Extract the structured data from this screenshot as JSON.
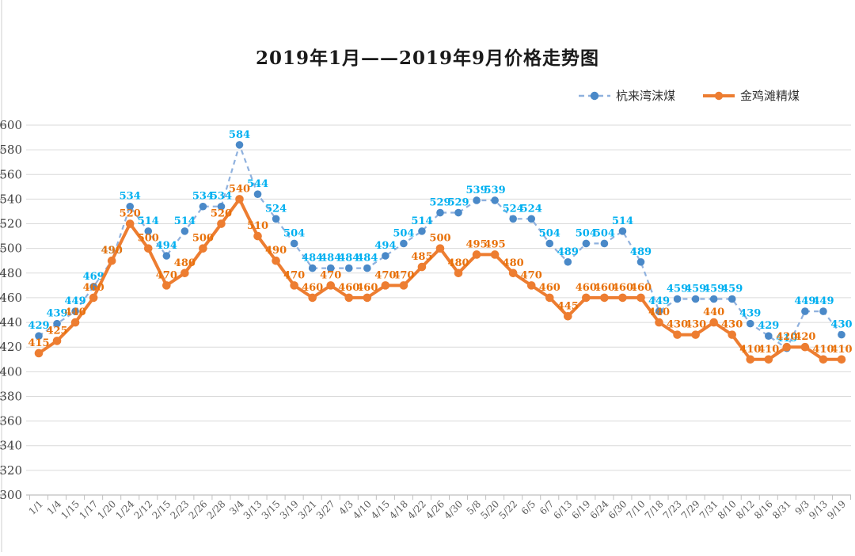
{
  "title": "2019年1月——2019年9月价格走势图",
  "chart_data": {
    "type": "line",
    "categories": [
      "1/1",
      "1/4",
      "1/15",
      "1/17",
      "1/20",
      "1/24",
      "2/12",
      "2/15",
      "2/23",
      "2/26",
      "2/28",
      "3/4",
      "3/13",
      "3/15",
      "3/19",
      "3/21",
      "3/27",
      "4/3",
      "4/10",
      "4/15",
      "4/18",
      "4/22",
      "4/26",
      "4/30",
      "5/8",
      "5/20",
      "5/22",
      "6/5",
      "6/7",
      "6/13",
      "6/19",
      "6/24",
      "6/30",
      "7/10",
      "7/18",
      "7/23",
      "7/29",
      "7/31",
      "8/10",
      "8/12",
      "8/16",
      "8/31",
      "9/3",
      "9/13",
      "9/19"
    ],
    "series": [
      {
        "name": "杭来湾沫煤",
        "values": [
          429,
          439,
          449,
          469,
          490,
          534,
          514,
          494,
          514,
          534,
          534,
          584,
          544,
          524,
          504,
          484,
          484,
          484,
          484,
          494,
          504,
          514,
          529,
          529,
          539,
          539,
          524,
          524,
          504,
          489,
          504,
          504,
          514,
          489,
          449,
          459,
          459,
          459,
          459,
          439,
          429,
          419,
          449,
          449,
          430
        ],
        "line_color": "#8FB1DE",
        "marker_color": "#4A89C8",
        "label_color": "#00B0F0",
        "dashed": true
      },
      {
        "name": "金鸡滩精煤",
        "values": [
          415,
          425,
          440,
          460,
          490,
          520,
          500,
          470,
          480,
          500,
          520,
          540,
          510,
          490,
          470,
          460,
          470,
          460,
          460,
          470,
          470,
          485,
          500,
          480,
          495,
          495,
          480,
          470,
          460,
          445,
          460,
          460,
          460,
          460,
          440,
          430,
          430,
          440,
          430,
          410,
          410,
          420,
          420,
          410,
          410
        ],
        "line_color": "#ED7D31",
        "marker_color": "#ED7D31",
        "label_color": "#E8710A",
        "dashed": false
      }
    ],
    "yticks": [
      600,
      580,
      560,
      540,
      520,
      500,
      480,
      460,
      440,
      420,
      400,
      380,
      360,
      340,
      320,
      300
    ],
    "ylim": [
      300,
      600
    ],
    "grid": true,
    "data_labels": true,
    "legend_position": "top-right",
    "colors": {
      "gridline": "#DADADA",
      "axis": "#BFBFBF",
      "x_label": "#595959",
      "y_label": "#404040"
    }
  }
}
